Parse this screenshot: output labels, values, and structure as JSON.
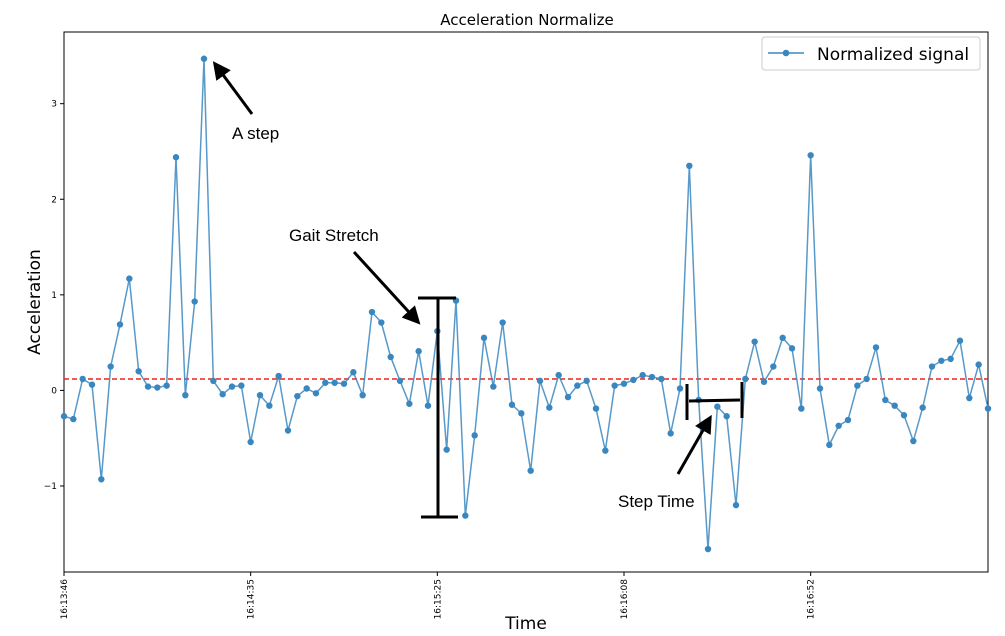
{
  "chart_data": {
    "type": "line",
    "title": "Acceleration Normalize",
    "xlabel": "Time",
    "ylabel": "Acceleration",
    "x_tick_labels": [
      "16:13:46",
      "16:14:35",
      "16:15:25",
      "16:16:08",
      "16:16:52"
    ],
    "x_tick_indices": [
      0,
      20,
      40,
      60,
      80
    ],
    "y_ticks": [
      -1,
      0,
      1,
      2,
      3
    ],
    "ylim": [
      -1.9,
      3.75
    ],
    "grid": false,
    "legend": {
      "position": "top-right"
    },
    "series": [
      {
        "name": "Normalized signal",
        "color": "#3a87c0",
        "values": [
          -0.27,
          -0.3,
          0.12,
          0.06,
          -0.93,
          0.25,
          0.69,
          1.17,
          0.2,
          0.04,
          0.03,
          0.05,
          2.44,
          -0.05,
          0.93,
          3.47,
          0.1,
          -0.04,
          0.04,
          0.05,
          -0.54,
          -0.05,
          -0.16,
          0.15,
          -0.42,
          -0.06,
          0.02,
          -0.03,
          0.08,
          0.08,
          0.07,
          0.19,
          -0.05,
          0.82,
          0.71,
          0.35,
          0.1,
          -0.14,
          0.41,
          -0.16,
          0.62,
          -0.62,
          0.94,
          -1.31,
          -0.47,
          0.55,
          0.04,
          0.71,
          -0.15,
          -0.24,
          -0.84,
          0.1,
          -0.18,
          0.16,
          -0.07,
          0.05,
          0.1,
          -0.19,
          -0.63,
          0.05,
          0.07,
          0.11,
          0.16,
          0.14,
          0.12,
          -0.45,
          0.02,
          2.35,
          -0.1,
          -1.66,
          -0.17,
          -0.27,
          -1.2,
          0.12,
          0.51,
          0.09,
          0.25,
          0.55,
          0.44,
          -0.19,
          2.46,
          0.02,
          -0.57,
          -0.37,
          -0.31,
          0.05,
          0.12,
          0.45,
          -0.1,
          -0.16,
          -0.26,
          -0.53,
          -0.18,
          0.25,
          0.31,
          0.33,
          0.52,
          -0.08,
          0.27,
          -0.19
        ]
      }
    ],
    "threshold_line": {
      "value": 0.12,
      "color": "#e8231c",
      "style": "dashed"
    },
    "annotations": [
      {
        "text": "A step",
        "target_index": 15
      },
      {
        "text": "Gait Stretch"
      },
      {
        "text": "Step Time"
      }
    ]
  }
}
